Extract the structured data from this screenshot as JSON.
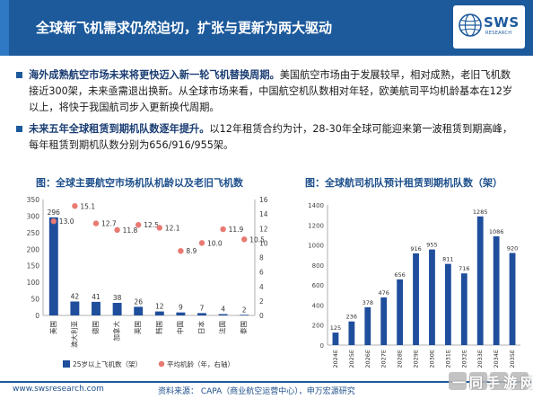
{
  "header": {
    "title": "全球新飞机需求仍然迫切，扩张与更新为两大驱动",
    "logo": "SWS",
    "logo_sub": "RESEARCH"
  },
  "bullets": [
    {
      "bold": "海外成熟航空市场未来将更快迈入新一轮飞机替换周期。",
      "text": "美国航空市场由于发展较早，相对成熟，老旧飞机数接近300架，未来亟需退出换新。从全球市场来看，中国航空机队数相对年轻，欧美航司平均机龄基本在12岁以上，将快于我国航司步入更新换代周期。"
    },
    {
      "bold": "未来五年全球租赁到期机队数逐年提升。",
      "text": "以12年租赁合约为计，28-30年全球可能迎来第一波租赁到期高峰，每年租赁到期机队数分别为656/916/955架。"
    }
  ],
  "chart_data": [
    {
      "type": "bar",
      "title": "图：全球主要航空市场机队机龄以及老旧飞机数",
      "categories": [
        "美国",
        "澳大利亚",
        "德国",
        "加拿大",
        "英国",
        "韩国",
        "中国",
        "日本",
        "法国",
        "泰国"
      ],
      "series": [
        {
          "name": "25岁以上飞机数（架）",
          "type": "bar",
          "axis": "left",
          "values": [
            296,
            42,
            41,
            38,
            26,
            12,
            9,
            7,
            4,
            2
          ],
          "color": "#1f4e9c"
        },
        {
          "name": "平均机龄（年，右轴）",
          "type": "scatter",
          "axis": "right",
          "values": [
            13.0,
            15.1,
            12.7,
            11.8,
            12.5,
            12.1,
            8.9,
            10.0,
            11.9,
            10.5
          ],
          "color": "#e87a72"
        }
      ],
      "ylim": [
        0,
        350
      ],
      "yticks": [
        0,
        50,
        100,
        150,
        200,
        250,
        300,
        350
      ],
      "y2lim": [
        0,
        16
      ],
      "y2ticks": [
        0,
        2,
        4,
        6,
        8,
        10,
        12,
        14,
        16
      ],
      "legend_position": "bottom"
    },
    {
      "type": "bar",
      "title": "图：全球航司机队预计租赁到期机队数（架）",
      "categories": [
        "2024E",
        "2025E",
        "2026E",
        "2027E",
        "2028E",
        "2029E",
        "2030E",
        "2031E",
        "2032E",
        "2033E",
        "2034E",
        "2035E"
      ],
      "values": [
        125,
        236,
        378,
        476,
        656,
        916,
        955,
        811,
        716,
        1285,
        1086,
        920
      ],
      "ylim": [
        0,
        1400
      ],
      "yticks": [
        0,
        200,
        400,
        600,
        800,
        1000,
        1200,
        1400
      ],
      "color": "#1f4e9c"
    }
  ],
  "footer": {
    "url": "www.swsresearch.com",
    "source": "资料来源：   CAPA（商业航空运营中心），申万宏源研究"
  },
  "watermark": "一同手游网"
}
